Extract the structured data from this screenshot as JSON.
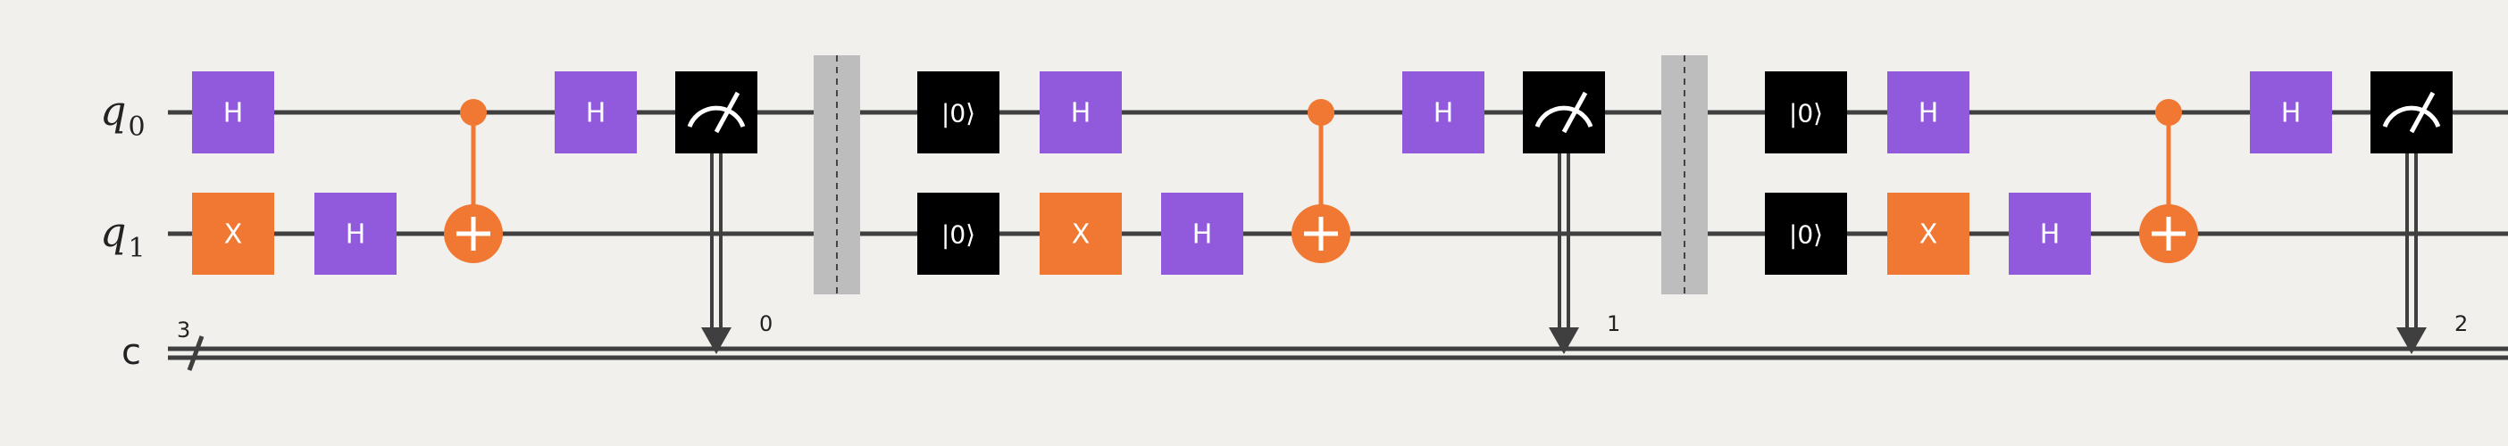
{
  "colors": {
    "background": "#f2f0ec",
    "wire": "#3f3f3f",
    "hadamard": "#9159dc",
    "pauli_x": "#f07833",
    "cnot": "#f07833",
    "measure": "#000000",
    "reset": "#000000",
    "barrier": "#bdbdbd"
  },
  "registers": {
    "q0": {
      "name": "q",
      "index": "0"
    },
    "q1": {
      "name": "q",
      "index": "1"
    },
    "c": {
      "name": "c",
      "size": "3"
    }
  },
  "gates": {
    "hadamard": "H",
    "pauli_x": "X",
    "reset": "|0⟩"
  },
  "measure_bits": [
    "0",
    "1",
    "2"
  ],
  "icons": {
    "measure": "measure-meter-icon",
    "cnot_target": "cnot-target-icon",
    "control_dot": "control-dot-icon",
    "barrier": "barrier-icon"
  }
}
